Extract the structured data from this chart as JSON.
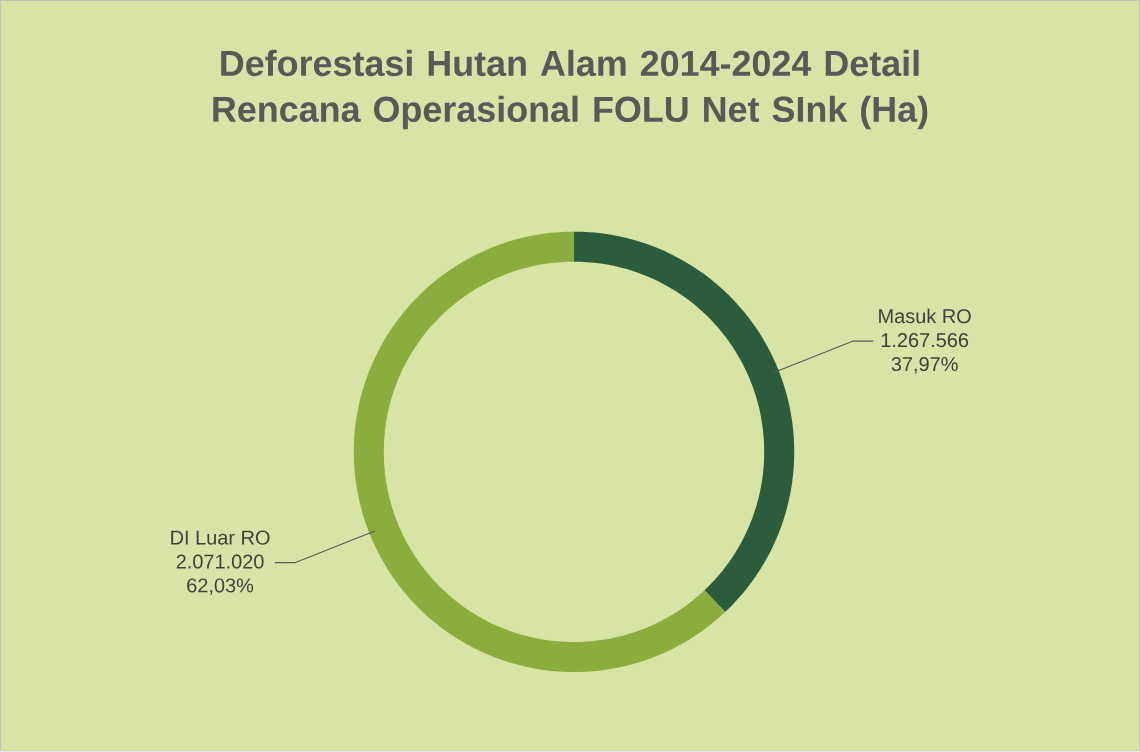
{
  "chart_data": {
    "type": "donut",
    "title": "Deforestasi Hutan Alam 2014-2024 Detail Rencana Operasional FOLU Net SInk (Ha)",
    "categories": [
      "Masuk RO",
      "DI Luar RO"
    ],
    "values": [
      1267566,
      2071020
    ],
    "colors": [
      "#2b5c3c",
      "#8aae3e"
    ],
    "value_labels": [
      "1.267.566",
      "2.071.020"
    ],
    "annotations": [
      "37,97%",
      "62,03%"
    ]
  }
}
